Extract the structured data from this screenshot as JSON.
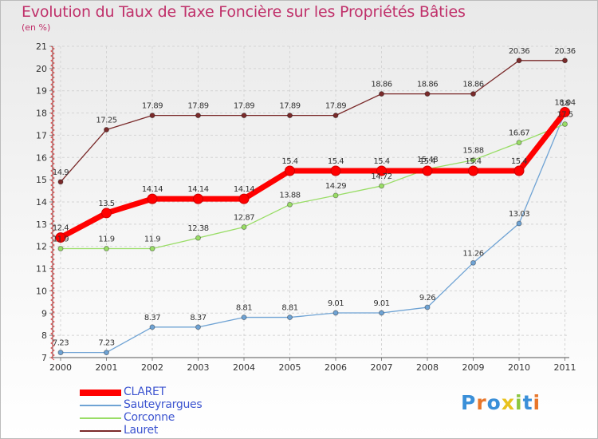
{
  "header": {
    "title": "Evolution du Taux de Taxe Foncière sur les Propriétés Bâties",
    "subtitle": "(en %)"
  },
  "chart_data": {
    "type": "line",
    "title": "Evolution du Taux de Taxe Foncière sur les Propriétés Bâties",
    "ylabel": "(en %)",
    "xlabel": "",
    "categories": [
      "2000",
      "2001",
      "2002",
      "2003",
      "2004",
      "2005",
      "2006",
      "2007",
      "2008",
      "2009",
      "2010",
      "2011"
    ],
    "ylim": [
      7,
      21
    ],
    "yticks": [
      "7",
      "8",
      "9",
      "10",
      "11",
      "12",
      "13",
      "14",
      "15",
      "16",
      "17",
      "18",
      "19",
      "20",
      "21"
    ],
    "grid": true,
    "legend": "bottom-left",
    "series": [
      {
        "name": "CLARET",
        "color": "#ff0000",
        "values": [
          12.4,
          13.5,
          14.14,
          14.14,
          14.14,
          15.4,
          15.4,
          15.4,
          15.4,
          15.4,
          15.4,
          18.04
        ],
        "labels": [
          "12.4",
          "13.5",
          "14.14",
          "14.14",
          "14.14",
          "15.4",
          "15.4",
          "15.4",
          "15.4",
          "15.4",
          "15.4",
          "18.04"
        ]
      },
      {
        "name": "Sauteyrargues",
        "color": "#6fa3d4",
        "values": [
          7.23,
          7.23,
          8.37,
          8.37,
          8.81,
          8.81,
          9.01,
          9.01,
          9.26,
          11.26,
          13.03,
          18
        ],
        "labels": [
          "7.23",
          "7.23",
          "8.37",
          "8.37",
          "8.81",
          "8.81",
          "9.01",
          "9.01",
          "9.26",
          "11.26",
          "13.03",
          "18"
        ]
      },
      {
        "name": "Corconne",
        "color": "#99dd66",
        "values": [
          11.9,
          11.9,
          11.9,
          12.38,
          12.87,
          13.88,
          14.29,
          14.72,
          15.48,
          15.88,
          16.67,
          17.5
        ],
        "labels": [
          "11.9",
          "11.9",
          "11.9",
          "12.38",
          "12.87",
          "13.88",
          "14.29",
          "14.72",
          "15.48",
          "15.88",
          "16.67",
          "17.5"
        ]
      },
      {
        "name": "Lauret",
        "color": "#7a2a2a",
        "values": [
          14.9,
          17.25,
          17.89,
          17.89,
          17.89,
          17.89,
          17.89,
          18.86,
          18.86,
          18.86,
          20.36,
          20.36
        ],
        "labels": [
          "14.9",
          "17.25",
          "17.89",
          "17.89",
          "17.89",
          "17.89",
          "17.89",
          "18.86",
          "18.86",
          "18.86",
          "20.36",
          "20.36"
        ]
      }
    ]
  },
  "legend": {
    "items": [
      "CLARET",
      "Sauteyrargues",
      "Corconne",
      "Lauret"
    ]
  },
  "logo": {
    "letters": [
      "P",
      "r",
      "o",
      "x",
      "i",
      "t",
      "i"
    ],
    "colors": [
      "#3a8fd8",
      "#e8762a",
      "#3a8fd8",
      "#e8c21e",
      "#8cc63f",
      "#3a8fd8",
      "#e8762a"
    ]
  }
}
